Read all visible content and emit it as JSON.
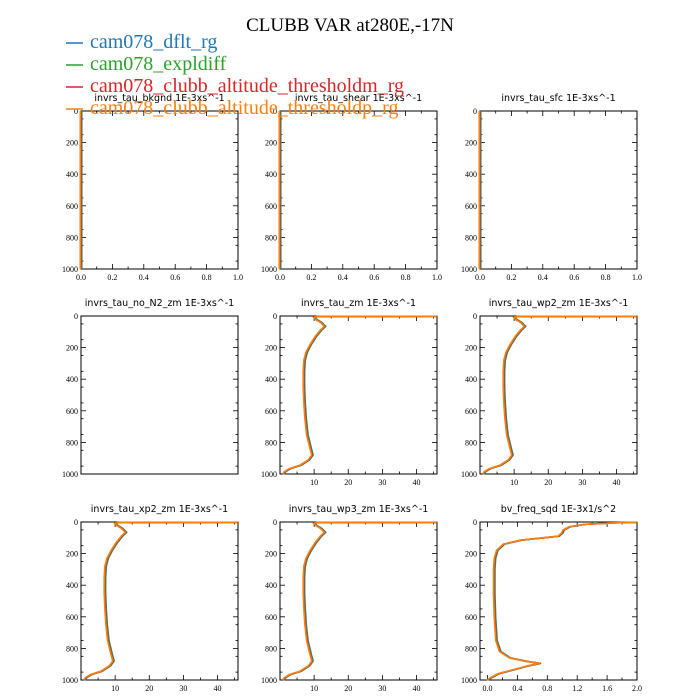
{
  "figure": {
    "title": "CLUBB VAR at280E,-17N"
  },
  "legend": [
    {
      "label": "cam078_dflt_rg",
      "color": "#1f77b4"
    },
    {
      "label": "cam078_expldiff",
      "color": "#2ca02c"
    },
    {
      "label": "cam078_clubb_altitude_thresholdm_rg",
      "color": "#d62728"
    },
    {
      "label": "cam078_clubb_altitude_thresholdp_rg",
      "color": "#ff7f0e"
    }
  ],
  "chart_data": [
    {
      "type": "line",
      "title": "invrs_tau_bkgnd   1E-3xs^-1",
      "xlim": [
        0,
        1
      ],
      "ylim": [
        1000,
        0
      ],
      "xticks": [
        "0.0",
        "0.2",
        "0.4",
        "0.6",
        "0.8",
        "1.0"
      ],
      "yticks": [
        "0",
        "200",
        "400",
        "600",
        "800",
        "1000"
      ],
      "series": [
        {
          "values": [
            [
              0,
              0
            ],
            [
              0,
              1000
            ]
          ]
        }
      ]
    },
    {
      "type": "line",
      "title": "invrs_tau_shear   1E-3xs^-1",
      "xlim": [
        0,
        1
      ],
      "ylim": [
        1000,
        0
      ],
      "xticks": [
        "0.0",
        "0.2",
        "0.4",
        "0.6",
        "0.8",
        "1.0"
      ],
      "yticks": [
        "0",
        "200",
        "400",
        "600",
        "800",
        "1000"
      ],
      "series": [
        {
          "values": [
            [
              0,
              0
            ],
            [
              0,
              1000
            ]
          ]
        }
      ]
    },
    {
      "type": "line",
      "title": "invrs_tau_sfc   1E-3xs^-1",
      "xlim": [
        0,
        1
      ],
      "ylim": [
        1000,
        0
      ],
      "xticks": [
        "0.0",
        "0.2",
        "0.4",
        "0.6",
        "0.8",
        "1.0"
      ],
      "yticks": [
        "0",
        "200",
        "400",
        "600",
        "800",
        "1000"
      ],
      "series": [
        {
          "values": [
            [
              0,
              0
            ],
            [
              0,
              1000
            ]
          ]
        }
      ]
    },
    {
      "type": "line",
      "title": "invrs_tau_no_N2_zm   1E-3xs^-1",
      "xlim": [
        0,
        1
      ],
      "ylim": [
        1000,
        0
      ],
      "xticks": [],
      "yticks": [
        "0",
        "200",
        "400",
        "600",
        "800",
        "1000"
      ],
      "series": []
    },
    {
      "type": "line",
      "title": "invrs_tau_zm   1E-3xs^-1",
      "xlim": [
        0,
        46
      ],
      "ylim": [
        1000,
        0
      ],
      "xticks": [
        "10",
        "20",
        "30",
        "40"
      ],
      "yticks": [
        "0",
        "200",
        "400",
        "600",
        "800",
        "1000"
      ],
      "series": [
        {
          "values": [
            [
              1,
              1000
            ],
            [
              1.5,
              985
            ],
            [
              3,
              965
            ],
            [
              6,
              945
            ],
            [
              8.5,
              910
            ],
            [
              9.5,
              880
            ],
            [
              9,
              840
            ],
            [
              8,
              750
            ],
            [
              7.5,
              650
            ],
            [
              7.2,
              550
            ],
            [
              7,
              450
            ],
            [
              7,
              350
            ],
            [
              7.2,
              280
            ],
            [
              7.8,
              230
            ],
            [
              9,
              180
            ],
            [
              10.5,
              130
            ],
            [
              12,
              90
            ],
            [
              13.2,
              65
            ],
            [
              12,
              40
            ],
            [
              10.5,
              20
            ],
            [
              10,
              8
            ],
            [
              11,
              3
            ],
            [
              46,
              2
            ]
          ]
        }
      ]
    },
    {
      "type": "line",
      "title": "invrs_tau_wp2_zm   1E-3xs^-1",
      "xlim": [
        0,
        46
      ],
      "ylim": [
        1000,
        0
      ],
      "xticks": [
        "10",
        "20",
        "30",
        "40"
      ],
      "yticks": [
        "0",
        "200",
        "400",
        "600",
        "800",
        "1000"
      ],
      "series": [
        {
          "values": [
            [
              1,
              1000
            ],
            [
              1.5,
              985
            ],
            [
              3,
              965
            ],
            [
              6,
              945
            ],
            [
              8.5,
              910
            ],
            [
              9.5,
              880
            ],
            [
              9,
              840
            ],
            [
              8,
              750
            ],
            [
              7.5,
              650
            ],
            [
              7.2,
              550
            ],
            [
              7,
              450
            ],
            [
              7,
              350
            ],
            [
              7.2,
              280
            ],
            [
              7.8,
              230
            ],
            [
              9,
              180
            ],
            [
              10.5,
              130
            ],
            [
              12,
              90
            ],
            [
              13.2,
              65
            ],
            [
              12,
              40
            ],
            [
              10.5,
              20
            ],
            [
              10,
              8
            ],
            [
              11,
              3
            ],
            [
              46,
              2
            ]
          ]
        }
      ]
    },
    {
      "type": "line",
      "title": "invrs_tau_xp2_zm   1E-3xs^-1",
      "xlim": [
        0,
        46
      ],
      "ylim": [
        1000,
        0
      ],
      "xticks": [
        "10",
        "20",
        "30",
        "40"
      ],
      "yticks": [
        "0",
        "200",
        "400",
        "600",
        "800",
        "1000"
      ],
      "series": [
        {
          "values": [
            [
              1,
              1000
            ],
            [
              1.5,
              985
            ],
            [
              3,
              965
            ],
            [
              6,
              945
            ],
            [
              8.5,
              910
            ],
            [
              9.5,
              880
            ],
            [
              9,
              840
            ],
            [
              8,
              750
            ],
            [
              7.5,
              650
            ],
            [
              7.2,
              550
            ],
            [
              7,
              450
            ],
            [
              7,
              350
            ],
            [
              7.2,
              280
            ],
            [
              7.8,
              230
            ],
            [
              9,
              180
            ],
            [
              10.5,
              130
            ],
            [
              12,
              90
            ],
            [
              13.2,
              65
            ],
            [
              12,
              40
            ],
            [
              10.5,
              20
            ],
            [
              10,
              8
            ],
            [
              11,
              3
            ],
            [
              46,
              2
            ]
          ]
        }
      ]
    },
    {
      "type": "line",
      "title": "invrs_tau_wp3_zm   1E-3xs^-1",
      "xlim": [
        0,
        46
      ],
      "ylim": [
        1000,
        0
      ],
      "xticks": [
        "10",
        "20",
        "30",
        "40"
      ],
      "yticks": [
        "0",
        "200",
        "400",
        "600",
        "800",
        "1000"
      ],
      "series": [
        {
          "values": [
            [
              1,
              1000
            ],
            [
              1.5,
              985
            ],
            [
              3,
              965
            ],
            [
              6,
              945
            ],
            [
              8.5,
              910
            ],
            [
              9.5,
              880
            ],
            [
              9,
              840
            ],
            [
              8,
              750
            ],
            [
              7.5,
              650
            ],
            [
              7.2,
              550
            ],
            [
              7,
              450
            ],
            [
              7,
              350
            ],
            [
              7.2,
              280
            ],
            [
              7.8,
              230
            ],
            [
              9,
              180
            ],
            [
              10.5,
              130
            ],
            [
              12,
              90
            ],
            [
              13.2,
              65
            ],
            [
              12,
              40
            ],
            [
              10.5,
              20
            ],
            [
              10,
              8
            ],
            [
              11,
              3
            ],
            [
              46,
              2
            ]
          ]
        }
      ]
    },
    {
      "type": "line",
      "title": "bv_freq_sqd   1E-3x1/s^2",
      "xlim": [
        -0.1,
        2.0
      ],
      "ylim": [
        1000,
        0
      ],
      "xticks": [
        "0.0",
        "0.4",
        "0.8",
        "1.2",
        "1.6",
        "2.0"
      ],
      "yticks": [
        "0",
        "200",
        "400",
        "600",
        "800",
        "1000"
      ],
      "series": [
        {
          "values": [
            [
              0,
              1000
            ],
            [
              0.05,
              985
            ],
            [
              0.15,
              960
            ],
            [
              0.35,
              935
            ],
            [
              0.55,
              910
            ],
            [
              0.7,
              895
            ],
            [
              0.5,
              880
            ],
            [
              0.3,
              860
            ],
            [
              0.17,
              820
            ],
            [
              0.12,
              750
            ],
            [
              0.1,
              600
            ],
            [
              0.09,
              450
            ],
            [
              0.09,
              300
            ],
            [
              0.1,
              230
            ],
            [
              0.13,
              180
            ],
            [
              0.22,
              140
            ],
            [
              0.45,
              115
            ],
            [
              0.75,
              100
            ],
            [
              0.95,
              90
            ],
            [
              1.0,
              70
            ],
            [
              1.02,
              50
            ],
            [
              1.1,
              30
            ],
            [
              1.3,
              15
            ],
            [
              1.7,
              5
            ],
            [
              2.0,
              2
            ]
          ]
        }
      ]
    }
  ]
}
